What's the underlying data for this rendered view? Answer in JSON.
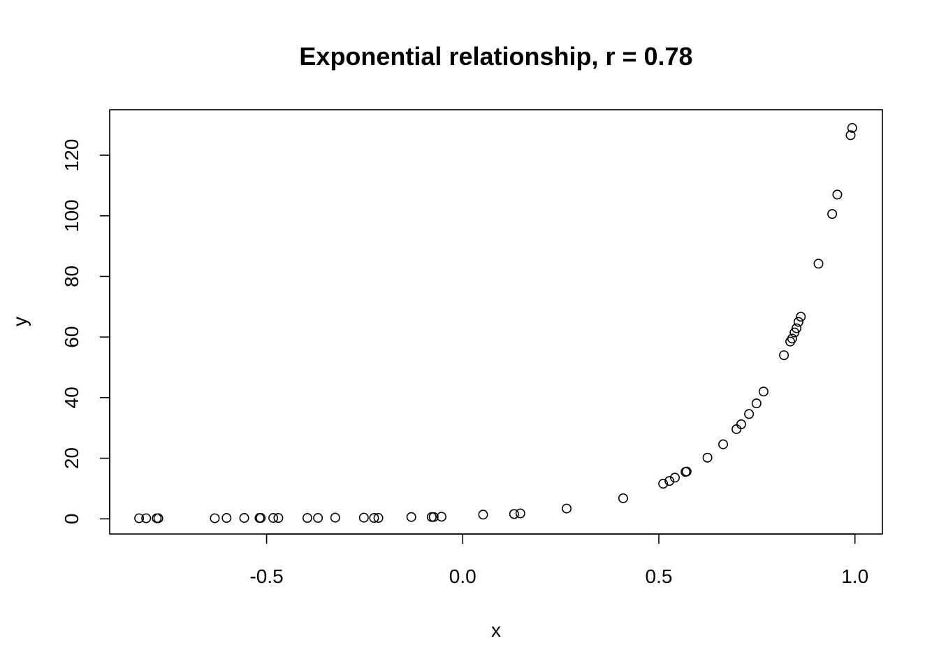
{
  "chart_data": {
    "type": "scatter",
    "title": "Exponential relationship, r = 0.78",
    "xlabel": "x",
    "ylabel": "y",
    "xlim": [
      -0.9,
      1.07
    ],
    "ylim": [
      -5,
      135
    ],
    "xticks": [
      -0.5,
      0.0,
      0.5,
      1.0
    ],
    "xtick_labels": [
      "-0.5",
      "0.0",
      "0.5",
      "1.0"
    ],
    "yticks": [
      0,
      20,
      40,
      60,
      80,
      100,
      120
    ],
    "ytick_labels": [
      "0",
      "20",
      "40",
      "60",
      "80",
      "100",
      "120"
    ],
    "grid": false,
    "marker": "open-circle",
    "series": [
      {
        "points": [
          {
            "x": -0.825,
            "y": 0.2
          },
          {
            "x": -0.807,
            "y": 0.2
          },
          {
            "x": -0.78,
            "y": 0.2
          },
          {
            "x": -0.776,
            "y": 0.2
          },
          {
            "x": -0.632,
            "y": 0.2
          },
          {
            "x": -0.602,
            "y": 0.3
          },
          {
            "x": -0.557,
            "y": 0.3
          },
          {
            "x": -0.518,
            "y": 0.3
          },
          {
            "x": -0.515,
            "y": 0.3
          },
          {
            "x": -0.483,
            "y": 0.3
          },
          {
            "x": -0.47,
            "y": 0.3
          },
          {
            "x": -0.396,
            "y": 0.3
          },
          {
            "x": -0.369,
            "y": 0.3
          },
          {
            "x": -0.325,
            "y": 0.4
          },
          {
            "x": -0.252,
            "y": 0.4
          },
          {
            "x": -0.226,
            "y": 0.3
          },
          {
            "x": -0.215,
            "y": 0.3
          },
          {
            "x": -0.131,
            "y": 0.6
          },
          {
            "x": -0.079,
            "y": 0.6
          },
          {
            "x": -0.074,
            "y": 0.6
          },
          {
            "x": -0.054,
            "y": 0.7
          },
          {
            "x": 0.052,
            "y": 1.4
          },
          {
            "x": 0.131,
            "y": 1.6
          },
          {
            "x": 0.147,
            "y": 1.8
          },
          {
            "x": 0.265,
            "y": 3.4
          },
          {
            "x": 0.409,
            "y": 6.8
          },
          {
            "x": 0.511,
            "y": 11.6
          },
          {
            "x": 0.527,
            "y": 12.5
          },
          {
            "x": 0.541,
            "y": 13.6
          },
          {
            "x": 0.568,
            "y": 15.5
          },
          {
            "x": 0.571,
            "y": 15.6
          },
          {
            "x": 0.624,
            "y": 20.2
          },
          {
            "x": 0.664,
            "y": 24.6
          },
          {
            "x": 0.698,
            "y": 29.6
          },
          {
            "x": 0.71,
            "y": 31.2
          },
          {
            "x": 0.73,
            "y": 34.6
          },
          {
            "x": 0.749,
            "y": 38.1
          },
          {
            "x": 0.767,
            "y": 42.0
          },
          {
            "x": 0.819,
            "y": 54.0
          },
          {
            "x": 0.835,
            "y": 58.5
          },
          {
            "x": 0.84,
            "y": 59.5
          },
          {
            "x": 0.846,
            "y": 61.5
          },
          {
            "x": 0.851,
            "y": 62.9
          },
          {
            "x": 0.856,
            "y": 65.0
          },
          {
            "x": 0.862,
            "y": 66.7
          },
          {
            "x": 0.907,
            "y": 84.2
          },
          {
            "x": 0.942,
            "y": 100.6
          },
          {
            "x": 0.955,
            "y": 107.0
          },
          {
            "x": 0.989,
            "y": 126.6
          },
          {
            "x": 0.993,
            "y": 129.0
          }
        ]
      }
    ]
  }
}
